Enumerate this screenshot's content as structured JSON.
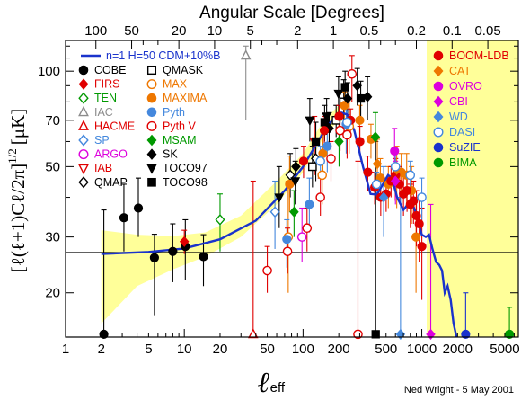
{
  "chart_data": {
    "type": "scatter",
    "title": "Angular Scale [Degrees]",
    "xlabel": "ℓ",
    "xlabel_sub": "eff",
    "ylabel": "[ℓ(ℓ+1)Cℓ/2π]",
    "ylabel_exp": "1/2",
    "ylabel_unit": "[μK]",
    "credit": "Ned Wright - 5 May 2001",
    "x_scale": "log",
    "y_scale": "log",
    "xlim": [
      1,
      6500
    ],
    "ylim": [
      14.5,
      125
    ],
    "x_ticks": [
      1,
      2,
      5,
      10,
      20,
      50,
      100,
      200,
      500,
      1000,
      2000,
      5000
    ],
    "y_ticks": [
      20,
      30,
      50,
      70,
      100
    ],
    "top_ticks": [
      100,
      50,
      20,
      10,
      5,
      2,
      1,
      0.5,
      0.2,
      0.1,
      0.05
    ],
    "top_tick_labels": [
      "100",
      "50",
      "20",
      "10",
      "5",
      "2",
      "1",
      "0.5",
      "0.2",
      "0.1",
      "0.05"
    ],
    "reference_line_y": 26.8,
    "model": {
      "name": "n=1 H=50 CDM+10%B",
      "color": "#1a33cc",
      "points": [
        [
          2,
          26.5
        ],
        [
          5,
          26.9
        ],
        [
          10,
          27.6
        ],
        [
          20,
          29.5
        ],
        [
          40,
          33.8
        ],
        [
          70,
          42
        ],
        [
          100,
          50
        ],
        [
          130,
          59
        ],
        [
          160,
          67
        ],
        [
          190,
          72.5
        ],
        [
          210,
          74
        ],
        [
          235,
          73
        ],
        [
          270,
          65
        ],
        [
          320,
          50
        ],
        [
          370,
          41
        ],
        [
          420,
          40.8
        ],
        [
          470,
          44
        ],
        [
          520,
          47
        ],
        [
          560,
          46
        ],
        [
          620,
          40
        ],
        [
          700,
          36.5
        ],
        [
          780,
          38.5
        ],
        [
          840,
          38
        ],
        [
          920,
          34.5
        ],
        [
          1000,
          30.5
        ],
        [
          1080,
          30
        ],
        [
          1150,
          30.5
        ],
        [
          1230,
          27.5
        ],
        [
          1320,
          25
        ],
        [
          1400,
          24.5
        ],
        [
          1480,
          23.5
        ],
        [
          1560,
          20
        ],
        [
          1650,
          21
        ],
        [
          1750,
          19
        ],
        [
          1850,
          16
        ],
        [
          1960,
          14.5
        ]
      ]
    },
    "cosmic_variance_band": {
      "color": "#ffff99",
      "lower": [
        [
          2,
          16
        ],
        [
          4,
          21
        ],
        [
          8,
          23.7
        ],
        [
          15,
          26
        ],
        [
          30,
          30
        ],
        [
          60,
          38
        ],
        [
          100,
          48
        ],
        [
          150,
          62
        ],
        [
          200,
          70
        ]
      ],
      "upper": [
        [
          2,
          31.5
        ],
        [
          4,
          30.5
        ],
        [
          8,
          30.2
        ],
        [
          15,
          31
        ],
        [
          30,
          35
        ],
        [
          60,
          45
        ],
        [
          100,
          55
        ],
        [
          150,
          70
        ],
        [
          200,
          78
        ]
      ],
      "high_l_start": 1100
    },
    "experiments": [
      {
        "name": "COBE",
        "color": "#000000",
        "marker": "circle",
        "filled": true,
        "points": [
          [
            2.1,
            14.8,
            14.5,
            36.5
          ],
          [
            3.1,
            34.5,
            27,
            44
          ],
          [
            4.1,
            37,
            30,
            46
          ],
          [
            5.6,
            25.8,
            17,
            30.6
          ],
          [
            8,
            27,
            21.6,
            33
          ],
          [
            10.2,
            28,
            22,
            34
          ],
          [
            14.5,
            26,
            21,
            30.5
          ]
        ]
      },
      {
        "name": "FIRS",
        "color": "#e00000",
        "marker": "diamond",
        "filled": true,
        "points": [
          [
            10,
            29,
            26.5,
            31.5
          ]
        ]
      },
      {
        "name": "TEN",
        "color": "#009900",
        "marker": "diamond",
        "filled": false,
        "points": [
          [
            20,
            34,
            27,
            41
          ]
        ]
      },
      {
        "name": "IAC",
        "color": "#8c8c8c",
        "marker": "triangle",
        "filled": false,
        "points": [
          [
            33,
            112,
            70,
            120
          ]
        ]
      },
      {
        "name": "HACME",
        "color": "#e00000",
        "marker": "triangle",
        "filled": false,
        "points": [
          [
            38,
            14.8,
            14.5,
            45
          ]
        ]
      },
      {
        "name": "SP",
        "color": "#4488dd",
        "marker": "diamond",
        "filled": false,
        "points": [
          [
            58,
            36,
            27.5,
            45
          ]
        ]
      },
      {
        "name": "ARGO",
        "color": "#dd00dd",
        "marker": "circle",
        "filled": false,
        "points": [
          [
            98,
            30,
            25,
            37
          ]
        ]
      },
      {
        "name": "IAB",
        "color": "#e00000",
        "marker": "triangle-down",
        "filled": false,
        "points": [
          [
            125,
            60,
            47,
            72
          ]
        ]
      },
      {
        "name": "QMAP",
        "color": "#000000",
        "marker": "diamond",
        "filled": false,
        "points": [
          [
            78,
            47,
            40,
            55
          ],
          [
            128,
            53,
            45,
            61
          ]
        ]
      },
      {
        "name": "QMASK",
        "color": "#000000",
        "marker": "square",
        "filled": false,
        "points": [
          [
            120,
            50,
            43,
            58
          ],
          [
            190,
            70,
            62,
            78
          ],
          [
            220,
            80,
            66,
            94
          ]
        ]
      },
      {
        "name": "MAX",
        "color": "#ee7700",
        "marker": "circle",
        "filled": false,
        "points": [
          [
            75,
            30,
            20,
            45
          ],
          [
            145,
            47,
            38,
            56
          ],
          [
            245,
            67,
            55,
            80
          ]
        ]
      },
      {
        "name": "MAXIMA",
        "color": "#ee7700",
        "marker": "circle",
        "filled": true,
        "points": [
          [
            77,
            44,
            36,
            54
          ],
          [
            147,
            55,
            47,
            63
          ],
          [
            223,
            78,
            70,
            86
          ],
          [
            300,
            70,
            62,
            78
          ],
          [
            373,
            61,
            53,
            68
          ],
          [
            448,
            46,
            40,
            53
          ],
          [
            523,
            44,
            37,
            50
          ],
          [
            597,
            46,
            39,
            53
          ],
          [
            671,
            48,
            40,
            55
          ],
          [
            746,
            47,
            38,
            55
          ],
          [
            820,
            42,
            33,
            50
          ],
          [
            894,
            30,
            20,
            40
          ]
        ]
      },
      {
        "name": "Pyth",
        "color": "#4488dd",
        "marker": "circle",
        "filled": true,
        "points": [
          [
            73,
            29.5,
            24,
            34
          ],
          [
            113,
            38,
            31,
            46
          ],
          [
            160,
            58,
            48,
            66
          ],
          [
            231,
            68,
            55,
            80
          ]
        ]
      },
      {
        "name": "Pyth V",
        "color": "#e00000",
        "marker": "circle",
        "filled": false,
        "points": [
          [
            50,
            23.5,
            20,
            28
          ],
          [
            74,
            27,
            23,
            32
          ],
          [
            108,
            32,
            27,
            37
          ],
          [
            140,
            40,
            35,
            46
          ],
          [
            172,
            53,
            45,
            60
          ],
          [
            205,
            65,
            56,
            74
          ],
          [
            235,
            63,
            53,
            73
          ],
          [
            258,
            98,
            80,
            112
          ],
          [
            290,
            14.8,
            14.5,
            52
          ]
        ]
      },
      {
        "name": "MSAM",
        "color": "#009900",
        "marker": "diamond",
        "filled": true,
        "points": [
          [
            84,
            36,
            30,
            42
          ],
          [
            201,
            60,
            50,
            70
          ],
          [
            407,
            62,
            50,
            74
          ]
        ]
      },
      {
        "name": "SK",
        "color": "#000000",
        "marker": "diamond",
        "filled": true,
        "points": [
          [
            87,
            50,
            43,
            57
          ],
          [
            166,
            66,
            58,
            74
          ],
          [
            237,
            82,
            71,
            92
          ],
          [
            286,
            90,
            78,
            102
          ],
          [
            349,
            83,
            70,
            96
          ]
        ]
      },
      {
        "name": "TOCO97",
        "color": "#000000",
        "marker": "triangle-down",
        "filled": true,
        "points": [
          [
            63,
            40,
            32,
            50
          ],
          [
            86,
            45,
            38,
            52
          ],
          [
            114,
            70,
            60,
            82
          ],
          [
            158,
            72,
            63,
            82
          ],
          [
            199,
            85,
            74,
            96
          ]
        ]
      },
      {
        "name": "TOCO98",
        "color": "#000000",
        "marker": "square",
        "filled": true,
        "points": [
          [
            128,
            60,
            51,
            69
          ],
          [
            152,
            69,
            60,
            78
          ],
          [
            226,
            89,
            78,
            100
          ],
          [
            306,
            82,
            71,
            93
          ],
          [
            409,
            14.8,
            14.5,
            60
          ]
        ]
      },
      {
        "name": "BOOM-LDB",
        "color": "#e00000",
        "marker": "circle",
        "filled": true,
        "points": [
          [
            101,
            52,
            46,
            58
          ],
          [
            151,
            65,
            59,
            72
          ],
          [
            201,
            72,
            66,
            78
          ],
          [
            251,
            70,
            64,
            76
          ],
          [
            301,
            60,
            54,
            67
          ],
          [
            351,
            48,
            42,
            54
          ],
          [
            401,
            43,
            38,
            48
          ],
          [
            451,
            40,
            35,
            45
          ],
          [
            501,
            41,
            36,
            46
          ],
          [
            551,
            45,
            40,
            50
          ],
          [
            601,
            47,
            41,
            53
          ],
          [
            651,
            44,
            38,
            50
          ],
          [
            701,
            41,
            35,
            47
          ],
          [
            751,
            42,
            36,
            48
          ],
          [
            801,
            38,
            32,
            44
          ],
          [
            851,
            39,
            33,
            45
          ],
          [
            901,
            35,
            28,
            42
          ],
          [
            951,
            33,
            25,
            40
          ],
          [
            1001,
            28,
            19,
            37
          ]
        ]
      },
      {
        "name": "CAT",
        "color": "#ee7700",
        "marker": "diamond",
        "filled": true,
        "points": [
          [
            422,
            51,
            42,
            61
          ],
          [
            615,
            49,
            37,
            58
          ]
        ]
      },
      {
        "name": "OVRO",
        "color": "#dd00dd",
        "marker": "circle",
        "filled": true,
        "points": [
          [
            590,
            56,
            47,
            66
          ]
        ]
      },
      {
        "name": "CBI",
        "color": "#dd00dd",
        "marker": "diamond",
        "filled": true,
        "points": [
          [
            600,
            45,
            38,
            52
          ],
          [
            1190,
            14.8,
            14.5,
            38
          ]
        ]
      },
      {
        "name": "WD",
        "color": "#4488dd",
        "marker": "diamond",
        "filled": true,
        "points": [
          [
            477,
            40,
            30,
            50
          ],
          [
            662,
            14.8,
            14.5,
            40
          ]
        ]
      },
      {
        "name": "DASI",
        "color": "#4488dd",
        "marker": "circle",
        "filled": false,
        "points": [
          [
            140,
            52,
            46,
            58
          ],
          [
            235,
            69,
            63,
            75
          ],
          [
            416,
            44,
            40,
            48
          ],
          [
            600,
            50,
            46,
            55
          ],
          [
            800,
            47,
            42,
            52
          ],
          [
            1000,
            40,
            34,
            46
          ]
        ]
      },
      {
        "name": "SuZIE",
        "color": "#1a33cc",
        "marker": "circle",
        "filled": true,
        "points": [
          [
            2340,
            14.8,
            14.5,
            20
          ]
        ]
      },
      {
        "name": "BIMA",
        "color": "#009900",
        "marker": "circle",
        "filled": true,
        "points": [
          [
            5470,
            14.8,
            14.5,
            18
          ]
        ]
      }
    ],
    "legend": {
      "placement": "top-left and top-right",
      "model_entry": "n=1 H=50 CDM+10%B",
      "column1": [
        "COBE",
        "FIRS",
        "TEN",
        "IAC",
        "HACME",
        "SP",
        "ARGO",
        "IAB",
        "QMAP"
      ],
      "column2": [
        "QMASK",
        "MAX",
        "MAXIMA",
        "Pyth",
        "Pyth V",
        "MSAM",
        "SK",
        "TOCO97",
        "TOCO98"
      ],
      "column3": [
        "BOOM-LDB",
        "CAT",
        "OVRO",
        "CBI",
        "WD",
        "DASI",
        "SuZIE",
        "BIMA"
      ]
    }
  }
}
